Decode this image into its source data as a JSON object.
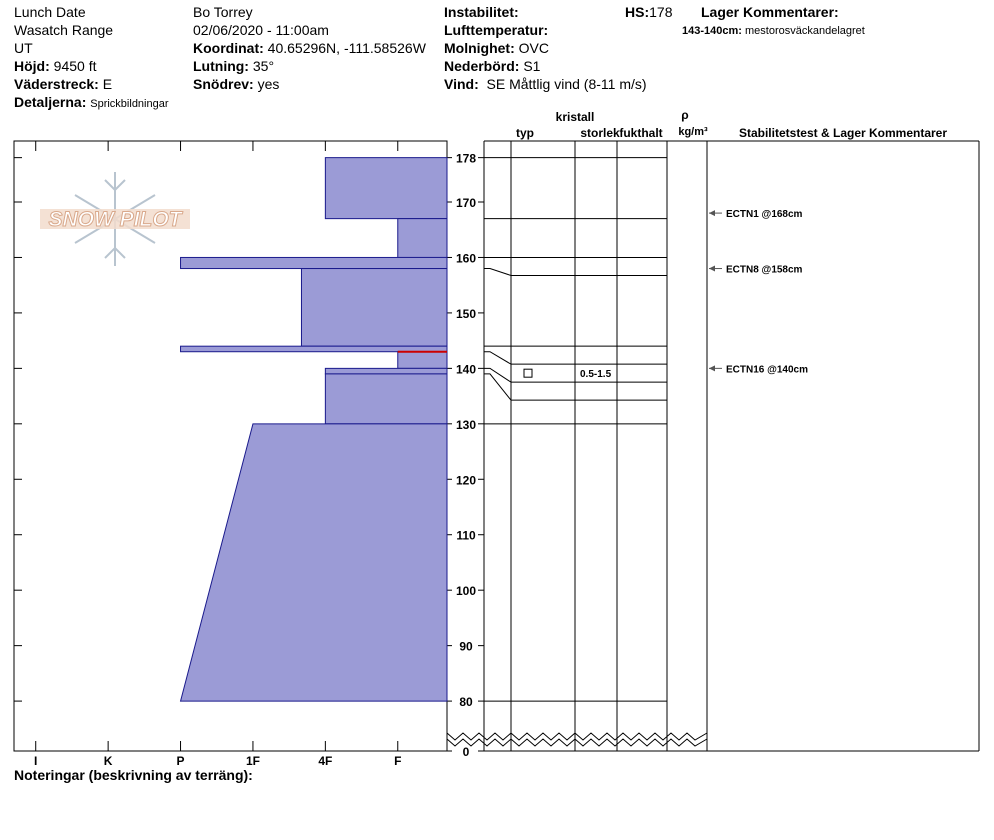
{
  "header": {
    "location": "Lunch Date",
    "range": "Wasatch Range",
    "state": "UT",
    "elevation": {
      "label": "Höjd:",
      "value": "9450 ft"
    },
    "aspect": {
      "label": "Väderstreck:",
      "value": "E"
    },
    "details": {
      "label": "Detaljerna:",
      "value": "Sprickbildningar"
    },
    "observer": "Bo Torrey",
    "datetime": "02/06/2020 - 11:00am",
    "coordinates": {
      "label": "Koordinat:",
      "value": "40.65296N, -111.58526W"
    },
    "slope": {
      "label": "Lutning:",
      "value": "35°"
    },
    "wind_loading": {
      "label": "Snödrev:",
      "value": "yes"
    },
    "instability": {
      "label": "Instabilitet:"
    },
    "air_temp": {
      "label": "Lufttemperatur:"
    },
    "sky": {
      "label": "Molnighet:",
      "value": "OVC"
    },
    "precip": {
      "label": "Nederbörd:",
      "value": "S1"
    },
    "wind": {
      "label": "Vind:",
      "value": "SE  Måttlig vind (8-11 m/s)"
    },
    "hs": {
      "label": "HS:",
      "value": 178
    },
    "layer_comments": {
      "label": "Lager Kommentarer:",
      "depth": "143-140cm:",
      "text": "mestorosväckandelagret"
    }
  },
  "chart_data": {
    "type": "snowprofile",
    "logo": "SNOW PILOT",
    "ylim": [
      71,
      181
    ],
    "yticks": [
      0,
      80,
      90,
      100,
      110,
      120,
      130,
      140,
      150,
      160,
      170,
      178
    ],
    "axis_break": true,
    "xlim": [
      6.3,
      0.32
    ],
    "xticks": [
      {
        "value": 6,
        "label": "I"
      },
      {
        "value": 5,
        "label": "K"
      },
      {
        "value": 4,
        "label": "P"
      },
      {
        "value": 3,
        "label": "1F"
      },
      {
        "value": 2,
        "label": "4F"
      },
      {
        "value": 1,
        "label": "F"
      }
    ],
    "color": "#9b9bd6",
    "edge_color": "#1a1a8c",
    "layers": [
      {
        "top": 178,
        "bottom": 167,
        "hardness": 2
      },
      {
        "top": 167,
        "bottom": 160,
        "hardness": 1
      },
      {
        "top": 160,
        "bottom": 158,
        "hardness": 4
      },
      {
        "top": 158,
        "bottom": 144,
        "hardness": 2.33
      },
      {
        "top": 144,
        "bottom": 143,
        "hardness": 4
      },
      {
        "top": 143,
        "bottom": 140,
        "hardness": 1,
        "grain_size": "0.5-1.5"
      },
      {
        "top": 140,
        "bottom": 139,
        "hardness": 2
      },
      {
        "top": 139,
        "bottom": 130,
        "hardness": 2
      },
      {
        "top": 130,
        "bottom": 80,
        "hardness": 3,
        "hardness_bottom": 4
      }
    ],
    "critical_layer": {
      "depth": 143,
      "color": "#cc0000"
    },
    "columns": {
      "crystal": "kristall",
      "type": "typ",
      "size": "storlek",
      "moisture": "fukthalt",
      "rho": "ρ",
      "density_unit": "kg/m³",
      "comments": "Stabilitetstest & Lager Kommentarer"
    },
    "tests": [
      {
        "label": "ECTN1 @168cm",
        "depth": 168
      },
      {
        "label": "ECTN8 @158cm",
        "depth": 158
      },
      {
        "label": "ECTN16 @140cm",
        "depth": 140
      }
    ],
    "footer": "Noteringar (beskrivning av terräng):"
  }
}
